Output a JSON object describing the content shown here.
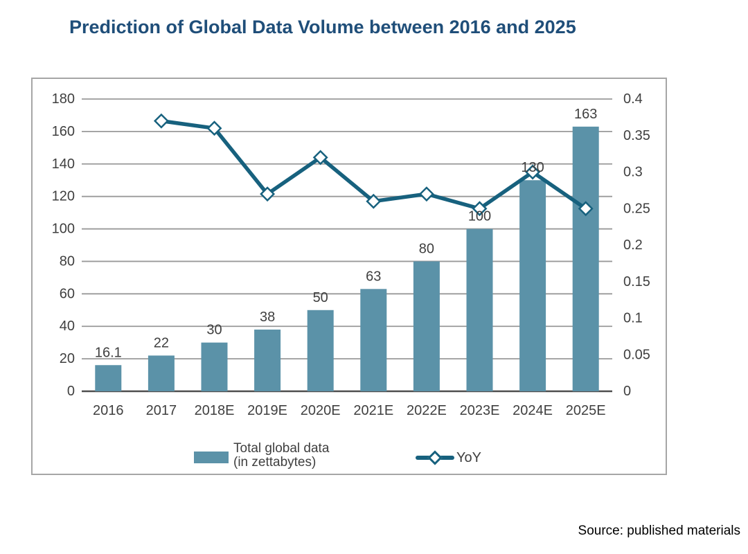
{
  "page": {
    "title": "Prediction of Global Data Volume between 2016 and 2025",
    "source": "Source: published materials"
  },
  "legend": {
    "bar_label_line1": "Total global data",
    "bar_label_line2": "(in zettabytes)",
    "line_label": "YoY"
  },
  "colors": {
    "title": "#1f4e79",
    "bar": "#5b92a8",
    "line": "#17617e",
    "marker_fill": "#ffffff",
    "grid": "#999999",
    "baseline": "#4d4d4d",
    "axis_text": "#3f3f3f",
    "box_border": "#a6a6a6",
    "source_text": "#000000"
  },
  "chart_data": {
    "type": "combo",
    "title": "Prediction of Global Data Volume between 2016 and 2025",
    "categories": [
      "2016",
      "2017",
      "2018E",
      "2019E",
      "2020E",
      "2021E",
      "2022E",
      "2023E",
      "2024E",
      "2025E"
    ],
    "series": [
      {
        "name": "Total global data (in zettabytes)",
        "type": "bar",
        "axis": "left",
        "values": [
          16.1,
          22,
          30,
          38,
          50,
          63,
          80,
          100,
          130,
          163
        ],
        "labels": [
          "16.1",
          "22",
          "30",
          "38",
          "50",
          "63",
          "80",
          "100",
          "130",
          "163"
        ]
      },
      {
        "name": "YoY",
        "type": "line",
        "axis": "right",
        "values": [
          null,
          0.37,
          0.36,
          0.27,
          0.32,
          0.26,
          0.27,
          0.25,
          0.3,
          0.25
        ]
      }
    ],
    "left_axis": {
      "min": 0,
      "max": 180,
      "step": 20,
      "ticks": [
        180,
        160,
        140,
        120,
        100,
        80,
        60,
        40,
        20,
        0
      ]
    },
    "right_axis": {
      "min": 0,
      "max": 0.4,
      "step": 0.05,
      "ticks": [
        0.4,
        0.35,
        0.3,
        0.25,
        0.2,
        0.15,
        0.1,
        0.05,
        0
      ]
    },
    "grid": true,
    "legend_position": "bottom"
  }
}
